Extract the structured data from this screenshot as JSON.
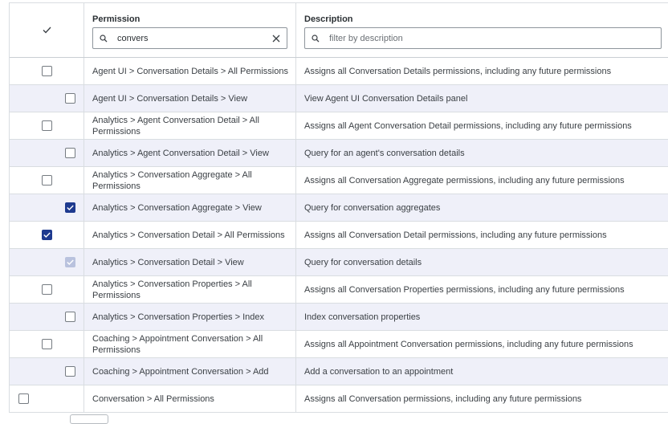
{
  "header": {
    "permission_title": "Permission",
    "description_title": "Description",
    "permission_filter_value": "convers",
    "description_filter_placeholder": "filter by description",
    "header_check_icon": "check-icon"
  },
  "rows": [
    {
      "level": 0,
      "state": "unchecked",
      "permission": "Agent UI > Conversation Details > All Permissions",
      "description": "Assigns all Conversation Details permissions, including any future permissions"
    },
    {
      "level": 1,
      "state": "unchecked",
      "permission": "Agent UI > Conversation Details > View",
      "description": "View Agent UI Conversation Details panel"
    },
    {
      "level": 0,
      "state": "unchecked",
      "permission": "Analytics > Agent Conversation Detail > All Permissions",
      "description": "Assigns all Agent Conversation Detail permissions, including any future permissions"
    },
    {
      "level": 1,
      "state": "unchecked",
      "permission": "Analytics > Agent Conversation Detail > View",
      "description": "Query for an agent's conversation details"
    },
    {
      "level": 0,
      "state": "unchecked",
      "permission": "Analytics > Conversation Aggregate > All Permissions",
      "description": "Assigns all Conversation Aggregate permissions, including any future permissions"
    },
    {
      "level": 1,
      "state": "checked",
      "permission": "Analytics > Conversation Aggregate > View",
      "description": "Query for conversation aggregates"
    },
    {
      "level": 0,
      "state": "checked",
      "permission": "Analytics > Conversation Detail > All Permissions",
      "description": "Assigns all Conversation Detail permissions, including any future permissions"
    },
    {
      "level": 1,
      "state": "disabled",
      "permission": "Analytics > Conversation Detail > View",
      "description": "Query for conversation details"
    },
    {
      "level": 0,
      "state": "unchecked",
      "permission": "Analytics > Conversation Properties > All Permissions",
      "description": "Assigns all Conversation Properties permissions, including any future permissions"
    },
    {
      "level": 1,
      "state": "unchecked",
      "permission": "Analytics > Conversation Properties > Index",
      "description": "Index conversation properties"
    },
    {
      "level": 0,
      "state": "unchecked",
      "permission": "Coaching > Appointment Conversation > All Permissions",
      "description": "Assigns all Appointment Conversation permissions, including any future permissions"
    },
    {
      "level": 1,
      "state": "unchecked",
      "permission": "Coaching > Appointment Conversation > Add",
      "description": "Add a conversation to an appointment"
    },
    {
      "level": -1,
      "state": "unchecked",
      "permission": "Conversation > All Permissions",
      "description": "Assigns all Conversation permissions, including any future permissions"
    }
  ],
  "colors": {
    "checked": "#1e3a8f",
    "disabled": "#b9c2de",
    "alt_row": "#eff0f9",
    "border": "#d9dde1"
  }
}
